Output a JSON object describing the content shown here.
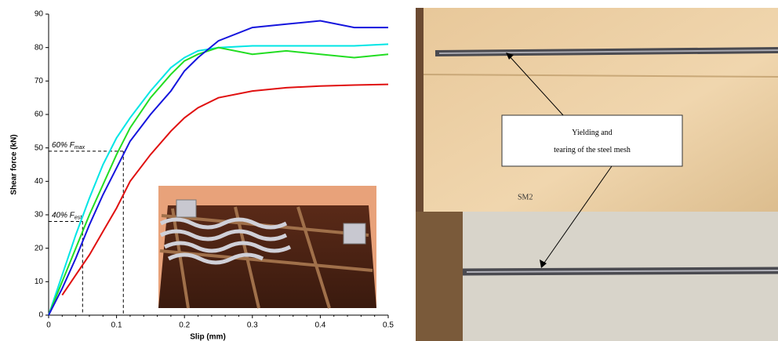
{
  "chart_data": {
    "type": "line",
    "x_label": "Slip (mm)",
    "y_label": "Shear force (kN)",
    "x": [
      0,
      0.02,
      0.04,
      0.06,
      0.08,
      0.1,
      0.12,
      0.15,
      0.18,
      0.2,
      0.22,
      0.25,
      0.3,
      0.35,
      0.4,
      0.45,
      0.5
    ],
    "series": [
      {
        "color": "#00e5e5",
        "values": [
          0,
          12,
          24,
          35,
          45,
          53,
          59,
          67,
          74,
          77,
          79,
          80,
          80.5,
          80.5,
          80.5,
          80.5,
          81
        ]
      },
      {
        "color": "#22dd22",
        "values": [
          0,
          10,
          20,
          30,
          39,
          48,
          56,
          65,
          72,
          76,
          78,
          80,
          78,
          79,
          78,
          77,
          78
        ]
      },
      {
        "color": "#1515dd",
        "values": [
          0,
          8,
          17,
          27,
          36,
          44,
          52,
          60,
          67,
          73,
          77,
          82,
          86,
          87,
          88,
          86,
          86
        ]
      },
      {
        "color": "#e01010",
        "values": [
          null,
          6,
          12,
          18,
          25,
          32,
          40,
          48,
          55,
          59,
          62,
          65,
          67,
          68,
          68.5,
          68.8,
          69
        ]
      }
    ],
    "reference_lines": [
      {
        "label": "60% F",
        "subscript": "max",
        "x": 0.11,
        "y": 49
      },
      {
        "label": "40% F",
        "subscript": "est",
        "x": 0.05,
        "y": 28
      }
    ],
    "xlim": [
      0,
      0.5
    ],
    "xticks": [
      0,
      0.1,
      0.2,
      0.3,
      0.4,
      0.5
    ],
    "ylim": [
      0,
      90
    ],
    "yticks": [
      0,
      10,
      20,
      30,
      40,
      50,
      60,
      70,
      80,
      90
    ],
    "grid": false
  },
  "photo": {
    "annotation": "Yielding and tearing of the steel mesh",
    "marking": "SM2"
  }
}
